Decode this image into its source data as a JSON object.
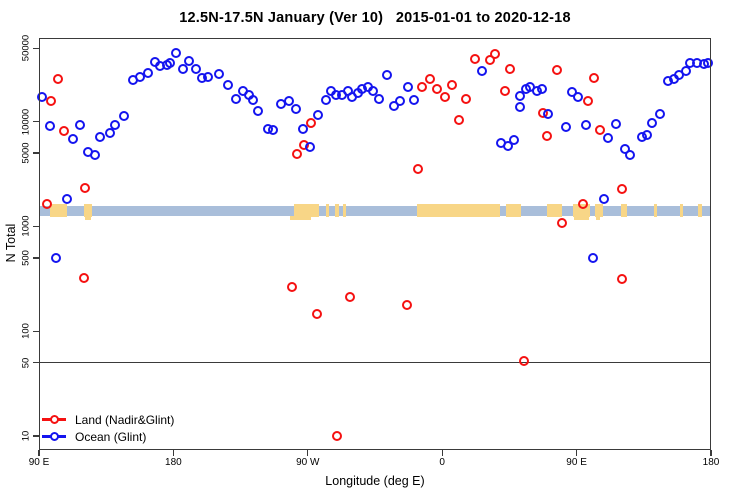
{
  "title": "12.5N-17.5N January (Ver 10)   2015-01-01 to 2020-12-18",
  "chart_data": {
    "type": "scatter",
    "title": "12.5N-17.5N January (Ver 10)   2015-01-01 to 2020-12-18",
    "xlabel": "Longitude (deg E)",
    "ylabel": "N Total",
    "xlim": [
      90,
      540
    ],
    "ylim": [
      10,
      50000
    ],
    "yscale": "log",
    "grid": false,
    "legend_position": "bottom-left",
    "reference_line_y": 50,
    "x_ticks": [
      {
        "lon": 90,
        "label": "90 E"
      },
      {
        "lon": 180,
        "label": "180"
      },
      {
        "lon": 270,
        "label": "90 W"
      },
      {
        "lon": 360,
        "label": "0"
      },
      {
        "lon": 450,
        "label": "90 E"
      },
      {
        "lon": 540,
        "label": "180"
      }
    ],
    "y_ticks": [
      {
        "value": 50000,
        "label": "50000"
      },
      {
        "value": 10000,
        "label": "10000"
      },
      {
        "value": 5000,
        "label": "5000"
      },
      {
        "value": 1000,
        "label": "1000"
      },
      {
        "value": 500,
        "label": "500"
      },
      {
        "value": 100,
        "label": "100"
      },
      {
        "value": 50,
        "label": "50"
      },
      {
        "value": 10,
        "label": "10"
      }
    ],
    "map_band": {
      "description": "world coastline strip for latitude band 12.5N-17.5N",
      "ocean_color": "#a9beda",
      "land_color": "#f8d687",
      "n_range": [
        1260,
        1580
      ],
      "land_segments_lon": [
        [
          97.5,
          108.5
        ],
        [
          120,
          125.5
        ],
        [
          260.5,
          277.5
        ],
        [
          282.5,
          284.5
        ],
        [
          288,
          291
        ],
        [
          293.5,
          295.5
        ],
        [
          343,
          399
        ],
        [
          402.5,
          412.5
        ],
        [
          430,
          440.5
        ],
        [
          447.5,
          459
        ],
        [
          462.5,
          468
        ],
        [
          479.5,
          484
        ],
        [
          502,
          504
        ],
        [
          519,
          521
        ],
        [
          531,
          534
        ]
      ],
      "land_lower_specks_lon": [
        [
          121,
          125
        ],
        [
          258,
          272
        ],
        [
          448,
          458
        ],
        [
          463,
          466
        ]
      ]
    },
    "series": [
      {
        "name": "Land (Nadir&Glint)",
        "color": "#f51111",
        "marker": "open-circle",
        "points": [
          [
            98,
            15700
          ],
          [
            102.7,
            25500
          ],
          [
            106.7,
            8130
          ],
          [
            120.8,
            2320
          ],
          [
            95.4,
            1630
          ],
          [
            120.1,
            321
          ],
          [
            262.7,
            4900
          ],
          [
            267.4,
            5970
          ],
          [
            272.1,
            9680
          ],
          [
            259.4,
            263
          ],
          [
            276.1,
            146
          ],
          [
            298.2,
            211
          ],
          [
            336.4,
            177
          ],
          [
            289.5,
            10
          ],
          [
            343.8,
            3520
          ],
          [
            346.4,
            21400
          ],
          [
            351.8,
            25500
          ],
          [
            356.5,
            20500
          ],
          [
            361.8,
            17200
          ],
          [
            366.5,
            22300
          ],
          [
            371.2,
            10300
          ],
          [
            375.9,
            16400
          ],
          [
            381.9,
            39500
          ],
          [
            391.9,
            38600
          ],
          [
            395.3,
            44200
          ],
          [
            402,
            19600
          ],
          [
            405.3,
            31700
          ],
          [
            427.5,
            12200
          ],
          [
            430.1,
            7280
          ],
          [
            436.8,
            31000
          ],
          [
            457.5,
            15700
          ],
          [
            461.5,
            26000
          ],
          [
            465.5,
            8300
          ],
          [
            440.1,
            1080
          ],
          [
            454.2,
            1630
          ],
          [
            480.3,
            2270
          ],
          [
            480.3,
            314
          ],
          [
            414.7,
            52
          ]
        ]
      },
      {
        "name": "Ocean (Glint)",
        "color": "#1414ef",
        "marker": "open-circle",
        "points": [
          [
            92,
            17100
          ],
          [
            97.4,
            9070
          ],
          [
            112.8,
            6820
          ],
          [
            117.5,
            9270
          ],
          [
            122.8,
            5130
          ],
          [
            127.5,
            4800
          ],
          [
            130.8,
            7130
          ],
          [
            137.5,
            7780
          ],
          [
            140.9,
            9270
          ],
          [
            146.9,
            11300
          ],
          [
            152.9,
            24900
          ],
          [
            157.6,
            26600
          ],
          [
            163,
            29000
          ],
          [
            167.7,
            37000
          ],
          [
            171,
            33900
          ],
          [
            175.7,
            34600
          ],
          [
            177.7,
            36200
          ],
          [
            181.7,
            45100
          ],
          [
            186.4,
            31700
          ],
          [
            190.4,
            37800
          ],
          [
            195.1,
            31700
          ],
          [
            199.1,
            26000
          ],
          [
            203.2,
            26600
          ],
          [
            210.5,
            28400
          ],
          [
            216.6,
            22300
          ],
          [
            221.9,
            16400
          ],
          [
            226.6,
            19600
          ],
          [
            230.6,
            17900
          ],
          [
            233.3,
            16100
          ],
          [
            236.6,
            12600
          ],
          [
            243.3,
            8490
          ],
          [
            246.7,
            8300
          ],
          [
            252,
            14700
          ],
          [
            257.4,
            15700
          ],
          [
            262.1,
            13200
          ],
          [
            266.8,
            8490
          ],
          [
            271.5,
            5710
          ],
          [
            276.8,
            11600
          ],
          [
            282.2,
            16100
          ],
          [
            285.5,
            19600
          ],
          [
            288.9,
            17900
          ],
          [
            292.9,
            17900
          ],
          [
            296.9,
            19600
          ],
          [
            299.6,
            17200
          ],
          [
            303.6,
            18700
          ],
          [
            306.3,
            20500
          ],
          [
            310.3,
            21400
          ],
          [
            313.6,
            19600
          ],
          [
            317.7,
            16400
          ],
          [
            323,
            27800
          ],
          [
            327.7,
            14100
          ],
          [
            331.7,
            15700
          ],
          [
            337.1,
            21400
          ],
          [
            341.1,
            16100
          ],
          [
            386.6,
            30300
          ],
          [
            399.3,
            6250
          ],
          [
            404,
            5850
          ],
          [
            408,
            6670
          ],
          [
            412,
            17500
          ],
          [
            412,
            13800
          ],
          [
            416,
            20500
          ],
          [
            418.7,
            21400
          ],
          [
            423.4,
            19600
          ],
          [
            426.7,
            20500
          ],
          [
            430.8,
            11800
          ],
          [
            442.8,
            8870
          ],
          [
            446.8,
            19100
          ],
          [
            450.8,
            17200
          ],
          [
            456.2,
            9270
          ],
          [
            470.9,
            6960
          ],
          [
            476.3,
            9480
          ],
          [
            482.3,
            5470
          ],
          [
            485.7,
            4800
          ],
          [
            493.7,
            7130
          ],
          [
            497.1,
            7450
          ],
          [
            500.4,
            9680
          ],
          [
            505.8,
            11800
          ],
          [
            511.1,
            24400
          ],
          [
            515.2,
            25500
          ],
          [
            518.5,
            27800
          ],
          [
            523.2,
            30300
          ],
          [
            525.9,
            36200
          ],
          [
            530.6,
            36200
          ],
          [
            535.2,
            35500
          ],
          [
            537.9,
            36200
          ],
          [
            108.7,
            1820
          ],
          [
            101.4,
            499
          ],
          [
            460.9,
            499
          ],
          [
            468.3,
            1820
          ]
        ]
      }
    ]
  }
}
